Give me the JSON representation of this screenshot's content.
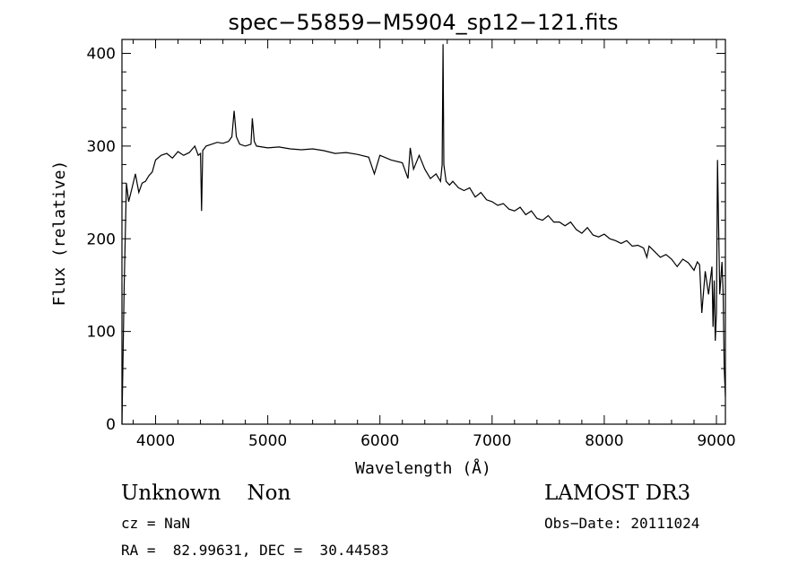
{
  "chart_data": {
    "type": "line",
    "title": "spec−55859−M5904_sp12−121.fits",
    "xlabel": "Wavelength (Å)",
    "ylabel": "Flux (relative)",
    "xlim": [
      3700,
      9080
    ],
    "ylim": [
      0,
      415
    ],
    "xticks": [
      4000,
      5000,
      6000,
      7000,
      8000,
      9000
    ],
    "yticks": [
      0,
      100,
      200,
      300,
      400
    ],
    "grid": false,
    "series": [
      {
        "x": [
          3700,
          3720,
          3740,
          3760,
          3790,
          3820,
          3850,
          3880,
          3910,
          3940,
          3970,
          4000,
          4050,
          4100,
          4150,
          4200,
          4250,
          4300,
          4350,
          4380,
          4400,
          4410,
          4420,
          4450,
          4500,
          4550,
          4600,
          4650,
          4680,
          4700,
          4720,
          4750,
          4800,
          4850,
          4862,
          4880,
          4900,
          5000,
          5100,
          5200,
          5300,
          5400,
          5500,
          5600,
          5700,
          5800,
          5900,
          5950,
          6000,
          6100,
          6200,
          6250,
          6270,
          6300,
          6350,
          6400,
          6450,
          6500,
          6540,
          6555,
          6563,
          6570,
          6590,
          6620,
          6650,
          6700,
          6750,
          6800,
          6850,
          6900,
          6950,
          7000,
          7050,
          7100,
          7150,
          7200,
          7250,
          7300,
          7350,
          7400,
          7450,
          7500,
          7550,
          7600,
          7650,
          7700,
          7750,
          7800,
          7850,
          7900,
          7950,
          8000,
          8050,
          8100,
          8150,
          8200,
          8250,
          8300,
          8350,
          8380,
          8400,
          8450,
          8500,
          8550,
          8600,
          8650,
          8700,
          8750,
          8800,
          8830,
          8850,
          8870,
          8900,
          8930,
          8960,
          8970,
          8980,
          8990,
          9000,
          9010,
          9030,
          9050,
          9060,
          9070,
          9080
        ],
        "y": [
          0,
          150,
          260,
          240,
          255,
          270,
          250,
          260,
          262,
          268,
          272,
          285,
          290,
          292,
          287,
          294,
          290,
          293,
          300,
          290,
          292,
          230,
          295,
          300,
          302,
          304,
          303,
          305,
          310,
          338,
          310,
          302,
          300,
          302,
          330,
          305,
          300,
          298,
          299,
          297,
          296,
          297,
          295,
          292,
          293,
          291,
          288,
          270,
          290,
          285,
          282,
          265,
          298,
          275,
          290,
          275,
          265,
          270,
          262,
          280,
          410,
          280,
          262,
          258,
          262,
          255,
          252,
          255,
          245,
          250,
          242,
          240,
          236,
          238,
          232,
          230,
          234,
          226,
          230,
          222,
          220,
          225,
          218,
          218,
          214,
          218,
          210,
          206,
          212,
          204,
          202,
          205,
          200,
          198,
          195,
          198,
          192,
          193,
          190,
          180,
          192,
          186,
          180,
          183,
          178,
          170,
          178,
          174,
          166,
          175,
          172,
          120,
          165,
          140,
          170,
          105,
          155,
          90,
          120,
          285,
          140,
          175,
          140,
          60,
          30
        ]
      }
    ]
  },
  "info": {
    "class_label": "Unknown    Non",
    "survey": "LAMOST DR3",
    "cz": "cz = NaN",
    "obs_date": "Obs−Date: 20111024",
    "coords": "RA =  82.99631, DEC =  30.44583"
  }
}
